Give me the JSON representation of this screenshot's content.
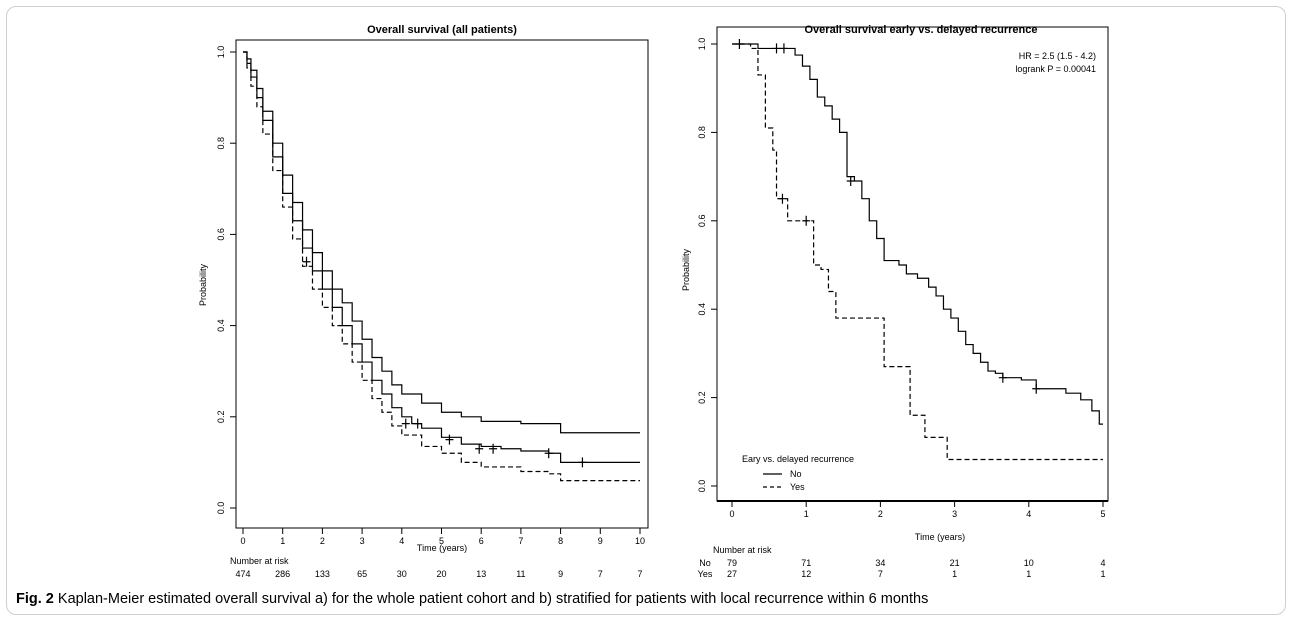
{
  "caption": {
    "label": "Fig. 2",
    "text": "Kaplan-Meier estimated overall survival a) for the whole patient cohort and b) stratified for patients with local recurrence within 6 months"
  },
  "chart_data": [
    {
      "type": "line",
      "title": "Overall survival (all patients)",
      "xlabel": "Time (years)",
      "ylabel": "Probability",
      "xlim": [
        0,
        10
      ],
      "ylim": [
        0,
        1
      ],
      "x_ticks": [
        "0",
        "1",
        "2",
        "3",
        "4",
        "5",
        "6",
        "7",
        "8",
        "9",
        "10"
      ],
      "y_ticks": [
        "0.0",
        "0.2",
        "0.4",
        "0.6",
        "0.8",
        "1.0"
      ],
      "series": [
        {
          "style": "solid",
          "points": [
            [
              0,
              1.0
            ],
            [
              0.1,
              0.985
            ],
            [
              0.2,
              0.96
            ],
            [
              0.35,
              0.92
            ],
            [
              0.5,
              0.87
            ],
            [
              0.75,
              0.8
            ],
            [
              1.0,
              0.73
            ],
            [
              1.25,
              0.67
            ],
            [
              1.5,
              0.61
            ],
            [
              1.75,
              0.56
            ],
            [
              2.0,
              0.52
            ],
            [
              2.25,
              0.48
            ],
            [
              2.5,
              0.45
            ],
            [
              2.75,
              0.41
            ],
            [
              3.0,
              0.37
            ],
            [
              3.25,
              0.33
            ],
            [
              3.5,
              0.3
            ],
            [
              3.75,
              0.27
            ],
            [
              4.0,
              0.25
            ],
            [
              4.5,
              0.23
            ],
            [
              5.0,
              0.21
            ],
            [
              5.5,
              0.2
            ],
            [
              6.0,
              0.19
            ],
            [
              7.0,
              0.185
            ],
            [
              8.0,
              0.165
            ],
            [
              10,
              0.165
            ]
          ],
          "censor": []
        },
        {
          "style": "solid",
          "points": [
            [
              0,
              1.0
            ],
            [
              0.1,
              0.975
            ],
            [
              0.2,
              0.945
            ],
            [
              0.35,
              0.9
            ],
            [
              0.5,
              0.85
            ],
            [
              0.75,
              0.77
            ],
            [
              1.0,
              0.69
            ],
            [
              1.25,
              0.63
            ],
            [
              1.5,
              0.57
            ],
            [
              1.75,
              0.52
            ],
            [
              2.0,
              0.48
            ],
            [
              2.25,
              0.44
            ],
            [
              2.5,
              0.4
            ],
            [
              2.75,
              0.36
            ],
            [
              3.0,
              0.32
            ],
            [
              3.25,
              0.28
            ],
            [
              3.5,
              0.25
            ],
            [
              3.75,
              0.22
            ],
            [
              4.0,
              0.2
            ],
            [
              4.25,
              0.185
            ],
            [
              4.5,
              0.175
            ],
            [
              5.0,
              0.155
            ],
            [
              5.5,
              0.14
            ],
            [
              6.0,
              0.135
            ],
            [
              6.5,
              0.13
            ],
            [
              7.0,
              0.125
            ],
            [
              7.7,
              0.12
            ],
            [
              8.0,
              0.1
            ],
            [
              10,
              0.1
            ]
          ],
          "censor": [
            [
              1.6,
              0.54
            ],
            [
              4.1,
              0.185
            ],
            [
              4.4,
              0.185
            ],
            [
              5.2,
              0.15
            ],
            [
              5.95,
              0.13
            ],
            [
              6.3,
              0.13
            ],
            [
              7.7,
              0.12
            ],
            [
              8.55,
              0.1
            ]
          ]
        },
        {
          "style": "dashed",
          "points": [
            [
              0,
              1.0
            ],
            [
              0.1,
              0.965
            ],
            [
              0.2,
              0.925
            ],
            [
              0.35,
              0.88
            ],
            [
              0.5,
              0.82
            ],
            [
              0.75,
              0.74
            ],
            [
              1.0,
              0.66
            ],
            [
              1.25,
              0.59
            ],
            [
              1.5,
              0.53
            ],
            [
              1.75,
              0.48
            ],
            [
              2.0,
              0.44
            ],
            [
              2.25,
              0.4
            ],
            [
              2.5,
              0.36
            ],
            [
              2.75,
              0.32
            ],
            [
              3.0,
              0.28
            ],
            [
              3.25,
              0.24
            ],
            [
              3.5,
              0.21
            ],
            [
              3.75,
              0.18
            ],
            [
              4.0,
              0.16
            ],
            [
              4.5,
              0.135
            ],
            [
              5.0,
              0.12
            ],
            [
              5.5,
              0.1
            ],
            [
              6.0,
              0.09
            ],
            [
              6.5,
              0.09
            ],
            [
              7.0,
              0.08
            ],
            [
              7.7,
              0.075
            ],
            [
              8.0,
              0.06
            ],
            [
              10,
              0.06
            ]
          ],
          "censor": []
        }
      ],
      "risk_table": {
        "header": "Number at risk",
        "rows": [
          {
            "label": "",
            "values": [
              "474",
              "286",
              "133",
              "65",
              "30",
              "20",
              "13",
              "11",
              "9",
              "7",
              "7"
            ]
          }
        ]
      }
    },
    {
      "type": "line",
      "title": "Overall survival early vs. delayed recurrence",
      "xlabel": "Time (years)",
      "ylabel": "Probability",
      "xlim": [
        0,
        5
      ],
      "ylim": [
        0,
        1
      ],
      "x_ticks": [
        "0",
        "1",
        "2",
        "3",
        "4",
        "5"
      ],
      "y_ticks": [
        "0.0",
        "0.2",
        "0.4",
        "0.6",
        "0.8",
        "1.0"
      ],
      "annotation": [
        "HR = 2.5 (1.5 - 4.2)",
        "logrank P = 0.00041"
      ],
      "legend": {
        "title": "Eary vs. delayed recurrence",
        "position": "bottom-left",
        "entries": [
          "No",
          "Yes"
        ]
      },
      "series": [
        {
          "name": "No",
          "style": "solid",
          "points": [
            [
              0,
              1.0
            ],
            [
              0.3,
              1.0
            ],
            [
              0.35,
              0.99
            ],
            [
              0.8,
              0.99
            ],
            [
              0.85,
              0.975
            ],
            [
              0.95,
              0.95
            ],
            [
              1.05,
              0.92
            ],
            [
              1.15,
              0.88
            ],
            [
              1.25,
              0.86
            ],
            [
              1.35,
              0.83
            ],
            [
              1.45,
              0.8
            ],
            [
              1.55,
              0.7
            ],
            [
              1.65,
              0.69
            ],
            [
              1.75,
              0.65
            ],
            [
              1.85,
              0.6
            ],
            [
              1.95,
              0.56
            ],
            [
              2.05,
              0.51
            ],
            [
              2.25,
              0.5
            ],
            [
              2.35,
              0.48
            ],
            [
              2.5,
              0.47
            ],
            [
              2.65,
              0.45
            ],
            [
              2.75,
              0.43
            ],
            [
              2.85,
              0.4
            ],
            [
              2.95,
              0.38
            ],
            [
              3.05,
              0.35
            ],
            [
              3.15,
              0.32
            ],
            [
              3.25,
              0.3
            ],
            [
              3.35,
              0.28
            ],
            [
              3.45,
              0.26
            ],
            [
              3.55,
              0.255
            ],
            [
              3.65,
              0.245
            ],
            [
              3.9,
              0.24
            ],
            [
              4.1,
              0.22
            ],
            [
              4.5,
              0.21
            ],
            [
              4.7,
              0.195
            ],
            [
              4.85,
              0.17
            ],
            [
              4.95,
              0.14
            ],
            [
              5.0,
              0.14
            ]
          ],
          "censor": [
            [
              0.1,
              1.0
            ],
            [
              0.6,
              0.99
            ],
            [
              0.7,
              0.99
            ],
            [
              1.6,
              0.69
            ],
            [
              3.65,
              0.245
            ],
            [
              4.1,
              0.22
            ]
          ]
        },
        {
          "name": "Yes",
          "style": "dashed",
          "points": [
            [
              0,
              1.0
            ],
            [
              0.25,
              0.99
            ],
            [
              0.35,
              0.93
            ],
            [
              0.45,
              0.81
            ],
            [
              0.55,
              0.76
            ],
            [
              0.6,
              0.65
            ],
            [
              0.75,
              0.6
            ],
            [
              1.0,
              0.6
            ],
            [
              1.1,
              0.5
            ],
            [
              1.2,
              0.49
            ],
            [
              1.3,
              0.44
            ],
            [
              1.4,
              0.38
            ],
            [
              1.6,
              0.38
            ],
            [
              2.0,
              0.38
            ],
            [
              2.05,
              0.27
            ],
            [
              2.35,
              0.27
            ],
            [
              2.4,
              0.16
            ],
            [
              2.55,
              0.16
            ],
            [
              2.6,
              0.11
            ],
            [
              2.85,
              0.11
            ],
            [
              2.9,
              0.06
            ],
            [
              5.0,
              0.06
            ]
          ],
          "censor": [
            [
              0.68,
              0.65
            ],
            [
              1.0,
              0.6
            ]
          ]
        }
      ],
      "risk_table": {
        "header": "Number at risk",
        "rows": [
          {
            "label": "No",
            "values": [
              "79",
              "71",
              "34",
              "21",
              "10",
              "4"
            ]
          },
          {
            "label": "Yes",
            "values": [
              "27",
              "12",
              "7",
              "1",
              "1",
              "1"
            ]
          }
        ]
      }
    }
  ]
}
